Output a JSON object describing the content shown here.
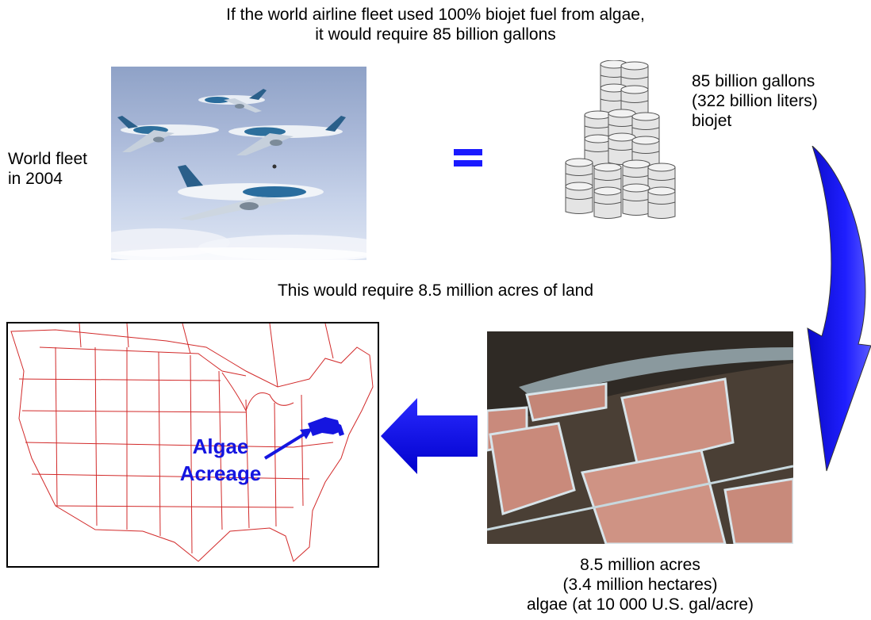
{
  "heading": {
    "line1": "If the world airline fleet used 100% biojet fuel from algae,",
    "line2": "it would require 85 billion gallons"
  },
  "fleet_label": {
    "line1": "World fleet",
    "line2": "in 2004"
  },
  "biojet_label": {
    "line1": "85 billion gallons",
    "line2": "(322 billion liters)",
    "line3": "biojet"
  },
  "land_statement": "This would require 8.5 million acres of land",
  "map": {
    "label_line1": "Algae",
    "label_line2": "Acreage"
  },
  "algae_area_label": {
    "line1": "8.5 million acres",
    "line2": "(3.4 million hectares)",
    "line3": "algae (at 10 000 U.S. gal/acre)"
  },
  "colors": {
    "accent_blue": "#1a1aff",
    "map_lines": "#d22a2a",
    "highlight_blue": "#1515e0"
  },
  "icons": [
    "equals-icon",
    "curved-down-arrow-icon",
    "left-arrow-icon",
    "fuel-barrel-icon",
    "airplane-icon"
  ]
}
